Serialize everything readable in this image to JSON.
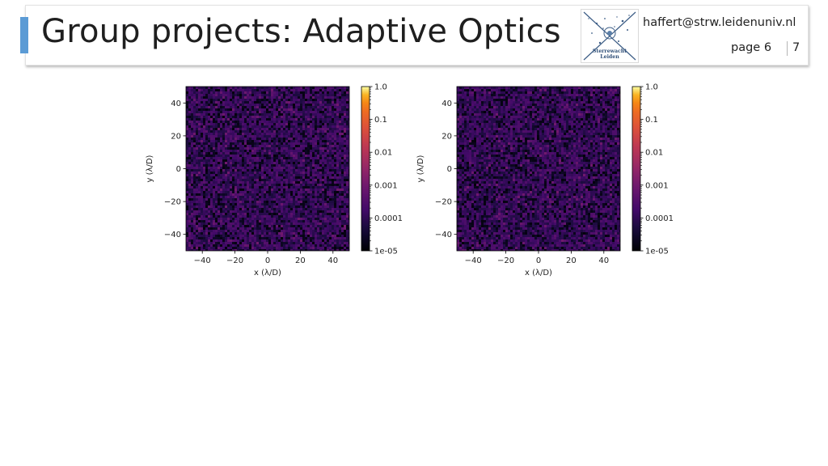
{
  "slide": {
    "title": "Group projects: Adaptive Optics",
    "email": "haffert@strw.leidenuniv.nl",
    "page_label": "page 6",
    "page_total": "7",
    "logo_text_line1": "Sterrewacht",
    "logo_text_line2": "Leiden"
  },
  "colors": {
    "accent": "#5b9bd5",
    "background_field": "#2a1845"
  },
  "chart_data": [
    {
      "type": "heatmap",
      "title": "",
      "xlabel": "x (λ/D)",
      "ylabel": "y (λ/D)",
      "xlim": [
        -50,
        50
      ],
      "ylim": [
        -50,
        50
      ],
      "xticks": [
        -40,
        -20,
        0,
        20,
        40
      ],
      "xticklabels": [
        "−40",
        "−20",
        "0",
        "20",
        "40"
      ],
      "yticks": [
        40,
        20,
        0,
        -20,
        -40
      ],
      "yticklabels": [
        "40",
        "20",
        "0",
        "−20",
        "−40"
      ],
      "colorbar": {
        "scale": "log",
        "colormap": "inferno",
        "range": [
          1e-05,
          1.0
        ],
        "ticks": [
          1.0,
          0.1,
          0.01,
          0.001,
          0.0001,
          1e-05
        ],
        "ticklabels": [
          "1.0",
          "0.1",
          "0.01",
          "0.001",
          "0.0001",
          "1e-05"
        ]
      }
    },
    {
      "type": "heatmap",
      "title": "",
      "xlabel": "x (λ/D)",
      "ylabel": "y (λ/D)",
      "xlim": [
        -50,
        50
      ],
      "ylim": [
        -50,
        50
      ],
      "xticks": [
        -40,
        -20,
        0,
        20,
        40
      ],
      "xticklabels": [
        "−40",
        "−20",
        "0",
        "20",
        "40"
      ],
      "yticks": [
        40,
        20,
        0,
        -20,
        -40
      ],
      "yticklabels": [
        "40",
        "20",
        "0",
        "−20",
        "−40"
      ],
      "colorbar": {
        "scale": "log",
        "colormap": "inferno",
        "range": [
          1e-05,
          1.0
        ],
        "ticks": [
          1.0,
          0.1,
          0.01,
          0.001,
          0.0001,
          1e-05
        ],
        "ticklabels": [
          "1.0",
          "0.1",
          "0.01",
          "0.001",
          "0.0001",
          "1e-05"
        ]
      }
    }
  ]
}
